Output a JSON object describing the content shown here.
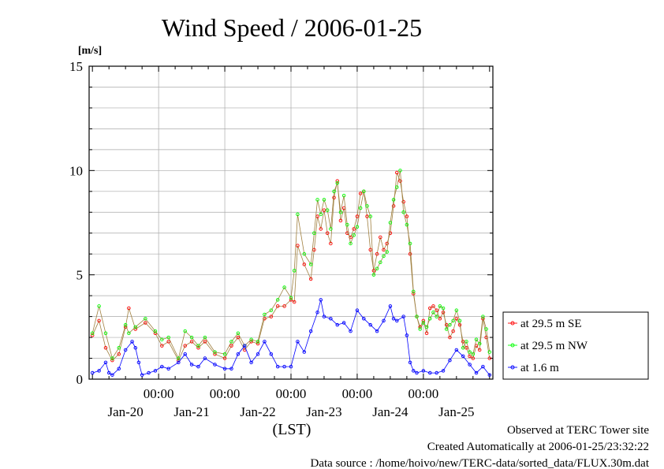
{
  "chart_data": {
    "type": "line",
    "title": "Wind Speed / 2006-01-25",
    "ylabel": "[m/s]",
    "xlabel": "(LST)",
    "ylim": [
      0,
      15
    ],
    "xlim": [
      -0.05,
      6.05
    ],
    "yticks": [
      0,
      5,
      10,
      15
    ],
    "grid": true,
    "legend_position": "right",
    "time_ticks": [
      {
        "x": 1.0,
        "label": "00:00"
      },
      {
        "x": 2.0,
        "label": "00:00"
      },
      {
        "x": 3.0,
        "label": "00:00"
      },
      {
        "x": 4.0,
        "label": "00:00"
      },
      {
        "x": 5.0,
        "label": "00:00"
      }
    ],
    "date_ticks": [
      {
        "x": 0.5,
        "label": "Jan-20"
      },
      {
        "x": 1.5,
        "label": "Jan-21"
      },
      {
        "x": 2.5,
        "label": "Jan-22"
      },
      {
        "x": 3.5,
        "label": "Jan-23"
      },
      {
        "x": 4.5,
        "label": "Jan-24"
      },
      {
        "x": 5.5,
        "label": "Jan-25"
      }
    ],
    "series": [
      {
        "name": "at 29.5 m SE",
        "color": "#ff0000",
        "line_color": "#a08040",
        "points": [
          [
            0.0,
            2.1
          ],
          [
            0.1,
            2.8
          ],
          [
            0.2,
            1.5
          ],
          [
            0.3,
            0.9
          ],
          [
            0.4,
            1.2
          ],
          [
            0.5,
            2.5
          ],
          [
            0.55,
            3.4
          ],
          [
            0.65,
            2.4
          ],
          [
            0.8,
            2.7
          ],
          [
            0.95,
            2.2
          ],
          [
            1.05,
            1.6
          ],
          [
            1.15,
            1.8
          ],
          [
            1.3,
            0.9
          ],
          [
            1.4,
            1.6
          ],
          [
            1.5,
            1.8
          ],
          [
            1.6,
            1.5
          ],
          [
            1.7,
            1.8
          ],
          [
            1.85,
            1.2
          ],
          [
            2.0,
            1.0
          ],
          [
            2.1,
            1.6
          ],
          [
            2.2,
            2.0
          ],
          [
            2.3,
            1.4
          ],
          [
            2.4,
            1.8
          ],
          [
            2.5,
            1.7
          ],
          [
            2.6,
            2.9
          ],
          [
            2.7,
            3.0
          ],
          [
            2.8,
            3.5
          ],
          [
            2.9,
            3.5
          ],
          [
            3.0,
            3.8
          ],
          [
            3.05,
            3.7
          ],
          [
            3.1,
            6.4
          ],
          [
            3.2,
            5.5
          ],
          [
            3.3,
            4.8
          ],
          [
            3.35,
            6.2
          ],
          [
            3.4,
            7.8
          ],
          [
            3.45,
            7.2
          ],
          [
            3.5,
            8.1
          ],
          [
            3.55,
            7.0
          ],
          [
            3.6,
            6.5
          ],
          [
            3.65,
            8.7
          ],
          [
            3.7,
            9.5
          ],
          [
            3.75,
            7.6
          ],
          [
            3.8,
            8.2
          ],
          [
            3.85,
            7.0
          ],
          [
            3.9,
            6.8
          ],
          [
            3.95,
            7.2
          ],
          [
            4.0,
            7.8
          ],
          [
            4.05,
            8.9
          ],
          [
            4.1,
            9.0
          ],
          [
            4.15,
            7.8
          ],
          [
            4.2,
            6.2
          ],
          [
            4.25,
            5.2
          ],
          [
            4.3,
            6.0
          ],
          [
            4.35,
            6.8
          ],
          [
            4.4,
            6.2
          ],
          [
            4.45,
            6.5
          ],
          [
            4.5,
            7.0
          ],
          [
            4.55,
            8.3
          ],
          [
            4.6,
            9.9
          ],
          [
            4.65,
            9.5
          ],
          [
            4.7,
            8.5
          ],
          [
            4.75,
            7.8
          ],
          [
            4.8,
            6.0
          ],
          [
            4.85,
            4.1
          ],
          [
            4.9,
            3.0
          ],
          [
            4.95,
            2.5
          ],
          [
            5.0,
            2.8
          ],
          [
            5.05,
            2.2
          ],
          [
            5.1,
            3.4
          ],
          [
            5.15,
            3.5
          ],
          [
            5.2,
            3.3
          ],
          [
            5.25,
            2.9
          ],
          [
            5.3,
            3.2
          ],
          [
            5.35,
            2.6
          ],
          [
            5.4,
            2.0
          ],
          [
            5.45,
            2.3
          ],
          [
            5.5,
            2.9
          ],
          [
            5.55,
            2.6
          ],
          [
            5.6,
            1.8
          ],
          [
            5.65,
            1.5
          ],
          [
            5.7,
            1.1
          ],
          [
            5.75,
            1.0
          ],
          [
            5.8,
            1.6
          ],
          [
            5.85,
            1.4
          ],
          [
            5.9,
            2.9
          ],
          [
            5.95,
            2.0
          ],
          [
            6.0,
            1.0
          ]
        ]
      },
      {
        "name": "at 29.5 m NW",
        "color": "#00ff00",
        "line_color": "#a08040",
        "points": [
          [
            0.0,
            2.2
          ],
          [
            0.1,
            3.5
          ],
          [
            0.2,
            2.2
          ],
          [
            0.3,
            1.0
          ],
          [
            0.4,
            1.5
          ],
          [
            0.5,
            2.6
          ],
          [
            0.55,
            2.2
          ],
          [
            0.65,
            2.5
          ],
          [
            0.8,
            2.9
          ],
          [
            0.95,
            2.3
          ],
          [
            1.05,
            1.9
          ],
          [
            1.15,
            2.0
          ],
          [
            1.3,
            1.0
          ],
          [
            1.4,
            2.3
          ],
          [
            1.5,
            2.0
          ],
          [
            1.6,
            1.6
          ],
          [
            1.7,
            2.0
          ],
          [
            1.85,
            1.3
          ],
          [
            2.0,
            1.2
          ],
          [
            2.1,
            1.8
          ],
          [
            2.2,
            2.2
          ],
          [
            2.3,
            1.6
          ],
          [
            2.4,
            1.9
          ],
          [
            2.5,
            1.8
          ],
          [
            2.6,
            3.1
          ],
          [
            2.7,
            3.3
          ],
          [
            2.8,
            3.8
          ],
          [
            2.9,
            4.4
          ],
          [
            3.0,
            3.9
          ],
          [
            3.05,
            5.2
          ],
          [
            3.1,
            7.9
          ],
          [
            3.2,
            6.0
          ],
          [
            3.3,
            5.5
          ],
          [
            3.35,
            7.0
          ],
          [
            3.4,
            8.6
          ],
          [
            3.45,
            7.9
          ],
          [
            3.5,
            8.6
          ],
          [
            3.55,
            8.1
          ],
          [
            3.6,
            7.2
          ],
          [
            3.65,
            9.0
          ],
          [
            3.7,
            9.4
          ],
          [
            3.75,
            8.0
          ],
          [
            3.8,
            8.8
          ],
          [
            3.85,
            7.4
          ],
          [
            3.9,
            6.5
          ],
          [
            3.95,
            6.9
          ],
          [
            4.0,
            7.3
          ],
          [
            4.05,
            8.2
          ],
          [
            4.1,
            9.0
          ],
          [
            4.15,
            8.3
          ],
          [
            4.2,
            7.8
          ],
          [
            4.25,
            5.0
          ],
          [
            4.3,
            5.3
          ],
          [
            4.35,
            5.6
          ],
          [
            4.4,
            5.9
          ],
          [
            4.45,
            6.1
          ],
          [
            4.5,
            7.5
          ],
          [
            4.55,
            8.6
          ],
          [
            4.6,
            9.2
          ],
          [
            4.65,
            10.0
          ],
          [
            4.7,
            8.0
          ],
          [
            4.75,
            7.4
          ],
          [
            4.8,
            6.5
          ],
          [
            4.85,
            4.2
          ],
          [
            4.9,
            3.0
          ],
          [
            4.95,
            2.4
          ],
          [
            5.0,
            2.7
          ],
          [
            5.05,
            2.5
          ],
          [
            5.1,
            2.9
          ],
          [
            5.15,
            3.2
          ],
          [
            5.2,
            3.0
          ],
          [
            5.25,
            3.5
          ],
          [
            5.3,
            3.4
          ],
          [
            5.35,
            2.4
          ],
          [
            5.4,
            2.6
          ],
          [
            5.45,
            2.8
          ],
          [
            5.5,
            3.3
          ],
          [
            5.55,
            2.8
          ],
          [
            5.6,
            1.5
          ],
          [
            5.65,
            1.8
          ],
          [
            5.7,
            1.3
          ],
          [
            5.75,
            1.2
          ],
          [
            5.8,
            1.9
          ],
          [
            5.85,
            1.7
          ],
          [
            5.9,
            3.0
          ],
          [
            5.95,
            2.4
          ],
          [
            6.0,
            1.3
          ]
        ]
      },
      {
        "name": "at 1.6 m",
        "color": "#0000ff",
        "line_color": "#0000ff",
        "points": [
          [
            0.0,
            0.3
          ],
          [
            0.1,
            0.4
          ],
          [
            0.2,
            0.8
          ],
          [
            0.25,
            0.3
          ],
          [
            0.3,
            0.2
          ],
          [
            0.4,
            0.5
          ],
          [
            0.5,
            1.4
          ],
          [
            0.6,
            1.8
          ],
          [
            0.65,
            1.5
          ],
          [
            0.7,
            0.8
          ],
          [
            0.75,
            0.2
          ],
          [
            0.85,
            0.3
          ],
          [
            0.95,
            0.4
          ],
          [
            1.05,
            0.6
          ],
          [
            1.15,
            0.5
          ],
          [
            1.3,
            0.8
          ],
          [
            1.4,
            1.2
          ],
          [
            1.5,
            0.7
          ],
          [
            1.6,
            0.6
          ],
          [
            1.7,
            1.0
          ],
          [
            1.85,
            0.7
          ],
          [
            2.0,
            0.5
          ],
          [
            2.1,
            0.5
          ],
          [
            2.2,
            1.2
          ],
          [
            2.3,
            1.6
          ],
          [
            2.4,
            0.8
          ],
          [
            2.5,
            1.2
          ],
          [
            2.6,
            1.8
          ],
          [
            2.7,
            1.2
          ],
          [
            2.8,
            0.6
          ],
          [
            2.9,
            0.6
          ],
          [
            3.0,
            0.6
          ],
          [
            3.1,
            1.8
          ],
          [
            3.2,
            1.3
          ],
          [
            3.3,
            2.3
          ],
          [
            3.4,
            3.2
          ],
          [
            3.45,
            3.8
          ],
          [
            3.5,
            3.0
          ],
          [
            3.6,
            2.9
          ],
          [
            3.7,
            2.6
          ],
          [
            3.8,
            2.7
          ],
          [
            3.9,
            2.3
          ],
          [
            4.0,
            3.3
          ],
          [
            4.1,
            2.9
          ],
          [
            4.2,
            2.6
          ],
          [
            4.3,
            2.3
          ],
          [
            4.4,
            2.8
          ],
          [
            4.5,
            3.5
          ],
          [
            4.55,
            2.9
          ],
          [
            4.6,
            2.8
          ],
          [
            4.7,
            3.0
          ],
          [
            4.75,
            2.1
          ],
          [
            4.8,
            0.8
          ],
          [
            4.85,
            0.4
          ],
          [
            4.9,
            0.3
          ],
          [
            5.0,
            0.4
          ],
          [
            5.1,
            0.3
          ],
          [
            5.2,
            0.3
          ],
          [
            5.3,
            0.4
          ],
          [
            5.4,
            0.9
          ],
          [
            5.5,
            1.4
          ],
          [
            5.6,
            1.1
          ],
          [
            5.7,
            0.7
          ],
          [
            5.8,
            0.3
          ],
          [
            5.9,
            0.6
          ],
          [
            6.0,
            0.2
          ]
        ]
      }
    ]
  },
  "footer": {
    "line1": "Observed at TERC Tower site",
    "line2": "Created Automatically at 2006-01-25/23:32:22",
    "line3": "Data source : /home/hoivo/new/TERC-data/sorted_data/FLUX.30m.dat"
  }
}
